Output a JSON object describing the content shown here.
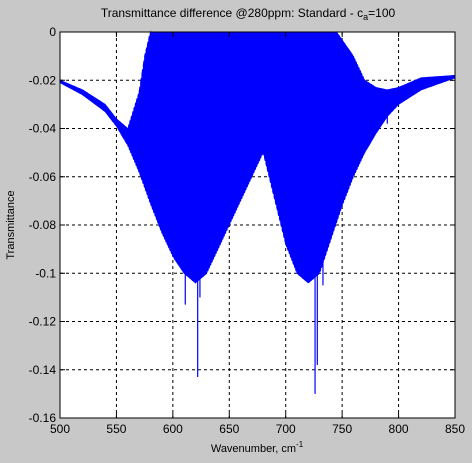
{
  "chart_data": {
    "type": "line",
    "title": {
      "main": "Transmittance difference @280ppm: Standard - c",
      "sub": "a",
      "tail": "=100"
    },
    "xlabel": {
      "main": "Wavenumber, cm",
      "sup": "-1"
    },
    "ylabel": "Transmittance",
    "xlim": [
      500,
      850
    ],
    "ylim": [
      -0.16,
      0
    ],
    "xticks": [
      500,
      550,
      600,
      650,
      700,
      750,
      800,
      850
    ],
    "yticks": [
      0,
      -0.02,
      -0.04,
      -0.06,
      -0.08,
      -0.1,
      -0.12,
      -0.14,
      -0.16
    ],
    "ytick_labels": [
      "0",
      "-0.02",
      "-0.04",
      "-0.06",
      "-0.08",
      "-0.1",
      "-0.12",
      "-0.14",
      "-0.16"
    ],
    "grid": true,
    "series": [
      {
        "color": "#0000ff",
        "envelope": {
          "x": [
            500,
            520,
            540,
            550,
            560,
            570,
            580,
            590,
            600,
            610,
            620,
            630,
            640,
            660,
            680,
            700,
            710,
            720,
            730,
            740,
            750,
            760,
            770,
            780,
            790,
            800,
            820,
            850
          ],
          "y": [
            -0.021,
            -0.026,
            -0.033,
            -0.039,
            -0.047,
            -0.058,
            -0.071,
            -0.083,
            -0.093,
            -0.1,
            -0.104,
            -0.1,
            -0.09,
            -0.07,
            -0.05,
            -0.088,
            -0.1,
            -0.104,
            -0.1,
            -0.086,
            -0.072,
            -0.06,
            -0.05,
            -0.042,
            -0.035,
            -0.03,
            -0.024,
            -0.019
          ]
        },
        "upper": {
          "x": [
            500,
            520,
            540,
            550,
            560,
            570,
            575,
            580,
            640,
            700,
            745,
            760,
            770,
            780,
            790,
            800,
            820,
            850
          ],
          "y": [
            -0.02,
            -0.024,
            -0.03,
            -0.036,
            -0.04,
            -0.025,
            -0.01,
            0,
            0,
            0,
            0,
            -0.01,
            -0.02,
            -0.023,
            -0.024,
            -0.023,
            -0.019,
            -0.018
          ]
        },
        "spikes": [
          {
            "x": 544,
            "y": -0.031
          },
          {
            "x": 611,
            "y": -0.113
          },
          {
            "x": 622,
            "y": -0.143
          },
          {
            "x": 624,
            "y": -0.11
          },
          {
            "x": 716,
            "y": -0.097
          },
          {
            "x": 720,
            "y": -0.097
          },
          {
            "x": 726,
            "y": -0.15
          },
          {
            "x": 728,
            "y": -0.138
          },
          {
            "x": 733,
            "y": -0.105
          },
          {
            "x": 790,
            "y": -0.038
          }
        ]
      }
    ]
  }
}
